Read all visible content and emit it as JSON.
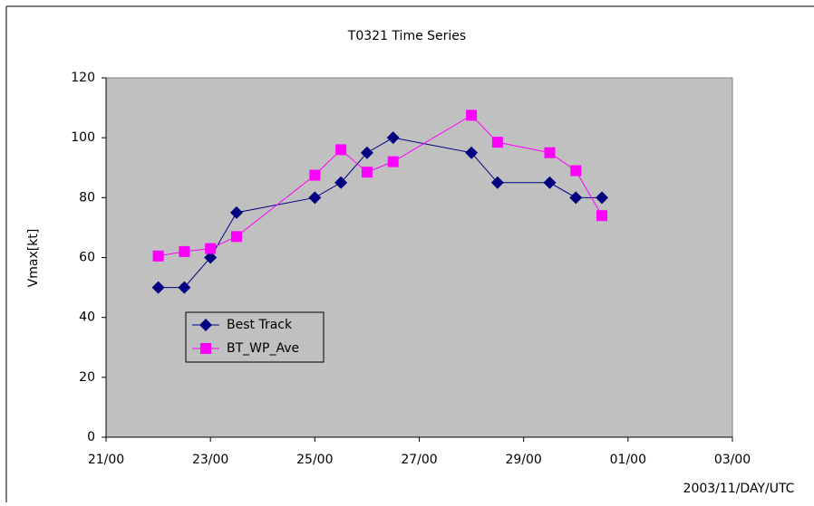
{
  "chart_data": {
    "type": "line",
    "title": "T0321 Time Series",
    "y_label": "Vmax[kt]",
    "x_label": "2003/11/DAY/UTC",
    "xlim": [
      21,
      33
    ],
    "xticks": [
      {
        "value": 21,
        "label": "21/00"
      },
      {
        "value": 23,
        "label": "23/00"
      },
      {
        "value": 25,
        "label": "25/00"
      },
      {
        "value": 27,
        "label": "27/00"
      },
      {
        "value": 29,
        "label": "29/00"
      },
      {
        "value": 31,
        "label": "01/00"
      },
      {
        "value": 33,
        "label": "03/00"
      }
    ],
    "ylim": [
      0,
      120
    ],
    "yticks": [
      0,
      20,
      40,
      60,
      80,
      100,
      120
    ],
    "x": [
      22.0,
      22.5,
      23.0,
      23.5,
      25.0,
      25.5,
      26.0,
      26.5,
      28.0,
      28.5,
      29.5,
      30.0,
      30.5
    ],
    "series": [
      {
        "name": "Best Track",
        "color": "#000080",
        "marker": "diamond",
        "values": [
          50,
          50,
          60,
          75,
          80,
          85,
          95,
          100,
          95,
          85,
          85,
          80,
          80
        ]
      },
      {
        "name": "BT_WP_Ave",
        "color": "#ff00ff",
        "marker": "square",
        "values": [
          60.5,
          62,
          63,
          67,
          87.5,
          96,
          88.5,
          92,
          107.5,
          98.5,
          95,
          89,
          74
        ]
      }
    ]
  }
}
